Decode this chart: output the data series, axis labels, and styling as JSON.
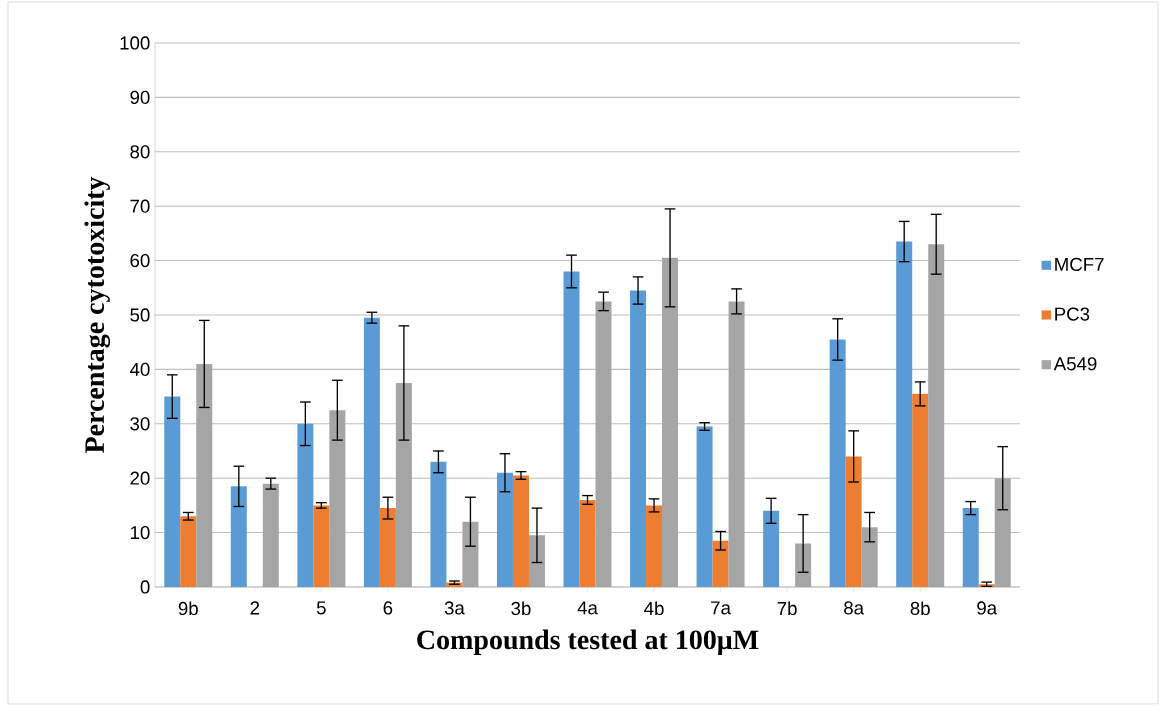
{
  "chart_data": {
    "type": "bar",
    "xlabel": "Compounds tested at 100μM",
    "ylabel": "Percentage cytotoxicity",
    "categories": [
      "9b",
      "2",
      "5",
      "6",
      "3a",
      "3b",
      "4a",
      "4b",
      "7a",
      "7b",
      "8a",
      "8b",
      "9a"
    ],
    "series": [
      {
        "name": "MCF7",
        "color": "#5b9bd5",
        "values": [
          35,
          18.5,
          30,
          49.5,
          23,
          21,
          58,
          54.5,
          29.5,
          14,
          45.5,
          63.5,
          14.5
        ],
        "errors": [
          4,
          3.7,
          4,
          1,
          2,
          3.5,
          3,
          2.5,
          0.7,
          2.3,
          3.8,
          3.7,
          1.2
        ]
      },
      {
        "name": "PC3",
        "color": "#ed7d31",
        "values": [
          13,
          0,
          15,
          14.5,
          0.8,
          20.5,
          16,
          15,
          8.5,
          0,
          24,
          35.5,
          0.5
        ],
        "errors": [
          0.7,
          null,
          0.5,
          2,
          0.3,
          0.7,
          0.8,
          1.2,
          1.7,
          null,
          4.7,
          2.2,
          0.4
        ]
      },
      {
        "name": "A549",
        "color": "#a5a5a5",
        "values": [
          41,
          19,
          32.5,
          37.5,
          12,
          9.5,
          52.5,
          60.5,
          52.5,
          8,
          11,
          63,
          20
        ],
        "errors": [
          8,
          1,
          5.5,
          10.5,
          4.5,
          5,
          1.7,
          9,
          2.3,
          5.3,
          2.7,
          5.5,
          5.8
        ]
      }
    ],
    "ylim": [
      0,
      100
    ],
    "yticks": [
      0,
      10,
      20,
      30,
      40,
      50,
      60,
      70,
      80,
      90,
      100
    ],
    "grid": "y",
    "legend": "right"
  }
}
